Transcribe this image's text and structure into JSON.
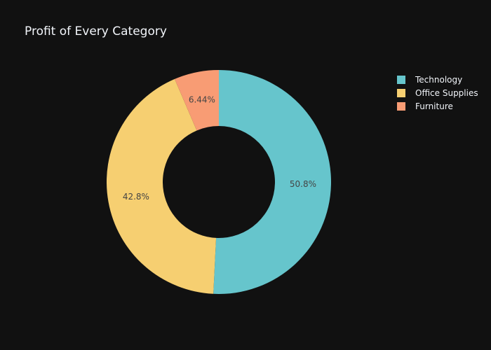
{
  "chart_data": {
    "type": "pie",
    "title": "Profit of Every Category",
    "hole": true,
    "legend_position": "top-right",
    "background_color": "#111111",
    "series": [
      {
        "labels": [
          "Technology",
          "Office Supplies",
          "Furniture"
        ],
        "values": [
          50.8,
          42.8,
          6.44
        ],
        "percent_labels": [
          "50.8%",
          "42.8%",
          "6.44%"
        ],
        "colors": [
          "#66c5cc",
          "#f6cf71",
          "#f89c74"
        ]
      }
    ]
  }
}
